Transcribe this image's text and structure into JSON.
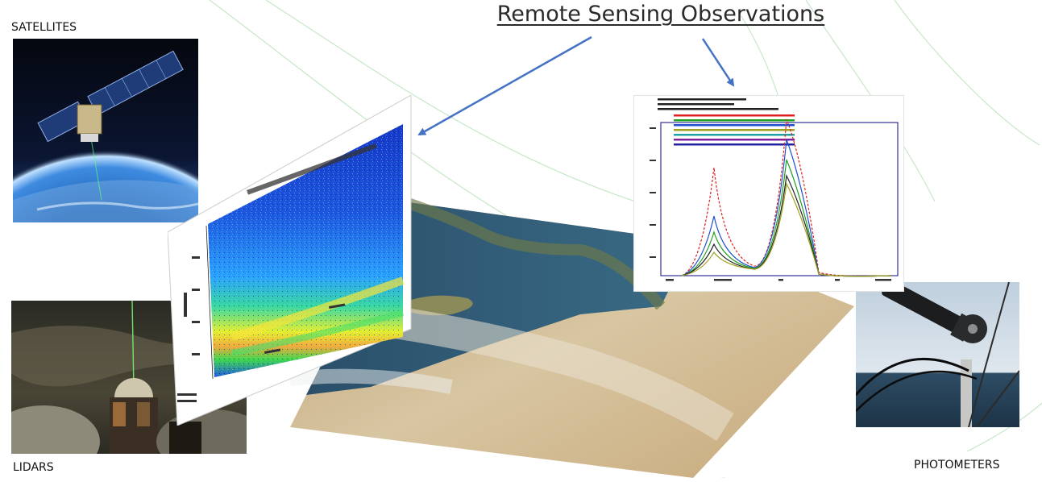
{
  "title": "Remote Sensing Observations",
  "labels": {
    "satellites": "SATELLITES",
    "lidars": "LIDARS",
    "photometers": "PHOTOMETERS"
  },
  "colors": {
    "arrow": "#4472c4",
    "swoosh": "#9ad39a",
    "chart_frame": "#0a0a8a"
  },
  "icons": {
    "satellite_photo": "satellite-in-orbit-icon",
    "lidar_photo": "lidar-station-icon",
    "photometer_photo": "sun-photometer-icon",
    "map": "satellite-map-icon",
    "lidar_chart": "lidar-backscatter-icon",
    "aeronet_chart": "size-distribution-icon"
  }
}
